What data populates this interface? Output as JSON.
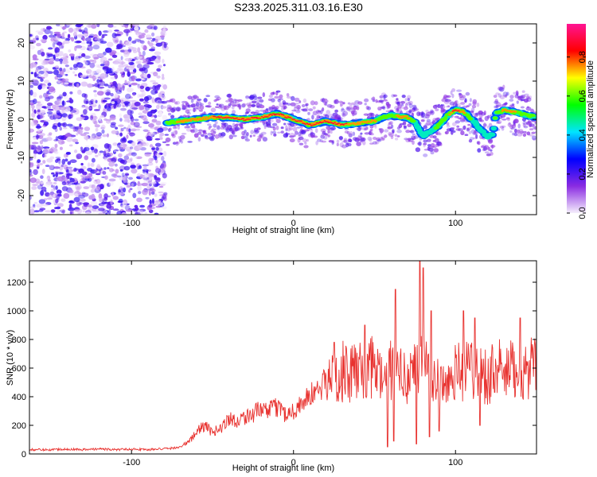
{
  "title": "S233.2025.311.03.16.E30",
  "chart_data": [
    {
      "type": "heatmap",
      "xlabel": "Height of straight line (km)",
      "ylabel": "Frequency (Hz)",
      "xlim": [
        -163,
        150
      ],
      "ylim": [
        -25,
        25
      ],
      "xticks": [
        -100,
        0,
        100
      ],
      "yticks": [
        -20,
        -10,
        0,
        10,
        20
      ],
      "colorbar": {
        "label": "Normalized spectral amplitude",
        "range": [
          0,
          0.97
        ],
        "ticks": [
          0.0,
          0.2,
          0.4,
          0.6,
          0.8
        ],
        "colormap": [
          "#f5eefc",
          "#8a2be2",
          "#0000ff",
          "#00e5ff",
          "#00ff00",
          "#ffff00",
          "#ff0000",
          "#ff1493"
        ]
      },
      "noise_region_x": [
        -163,
        -79
      ],
      "signal_track": {
        "x": [
          -78,
          -70,
          -60,
          -50,
          -40,
          -30,
          -20,
          -10,
          0,
          10,
          20,
          30,
          40,
          50,
          55,
          60,
          70,
          75,
          80,
          85,
          90,
          95,
          100,
          105,
          110,
          115,
          120,
          123,
          125,
          130,
          135,
          140,
          145,
          150
        ],
        "y": [
          -1,
          -0.5,
          0,
          0.5,
          0.5,
          0,
          0.5,
          1.5,
          0,
          -1.5,
          -0.5,
          -1.5,
          -1,
          -0.5,
          0.5,
          1,
          0.5,
          -1,
          -4.5,
          -3,
          -1.5,
          1,
          2.5,
          2,
          0,
          -2.5,
          -4.5,
          -4,
          1.5,
          2.5,
          2,
          1.5,
          1,
          0.5
        ],
        "amplitude": [
          0.6,
          0.7,
          0.75,
          0.8,
          0.85,
          0.85,
          0.8,
          0.9,
          0.9,
          0.85,
          0.8,
          0.85,
          0.7,
          0.7,
          0.6,
          0.6,
          0.8,
          0.5,
          0.4,
          0.5,
          0.55,
          0.6,
          0.9,
          0.7,
          0.5,
          0.5,
          0.5,
          0.4,
          0.6,
          0.7,
          0.75,
          0.6,
          0.55,
          0.5
        ]
      }
    },
    {
      "type": "line",
      "xlabel": "Height of straight line (km)",
      "ylabel": "SNR (10 * v/v)",
      "xlim": [
        -163,
        150
      ],
      "ylim": [
        0,
        1350
      ],
      "xticks": [
        -100,
        0,
        100
      ],
      "yticks": [
        0,
        200,
        400,
        600,
        800,
        1000,
        1200
      ],
      "color": "#e8322f",
      "x": [
        -163,
        -150,
        -140,
        -130,
        -120,
        -110,
        -100,
        -90,
        -80,
        -75,
        -70,
        -65,
        -60,
        -55,
        -50,
        -45,
        -40,
        -35,
        -30,
        -25,
        -20,
        -15,
        -10,
        -5,
        0,
        5,
        10,
        15,
        20,
        25,
        30,
        35,
        40,
        45,
        50,
        55,
        60,
        65,
        70,
        75,
        80,
        85,
        90,
        95,
        100,
        105,
        110,
        115,
        120,
        125,
        130,
        135,
        140,
        145,
        150
      ],
      "y": [
        30,
        30,
        35,
        30,
        35,
        30,
        35,
        30,
        35,
        40,
        50,
        80,
        150,
        200,
        150,
        180,
        250,
        230,
        260,
        280,
        310,
        300,
        330,
        280,
        300,
        360,
        400,
        450,
        500,
        550,
        580,
        540,
        600,
        550,
        620,
        500,
        580,
        540,
        560,
        600,
        650,
        560,
        520,
        500,
        600,
        560,
        620,
        580,
        540,
        600,
        560,
        580,
        560,
        600,
        580
      ],
      "spikes": [
        {
          "x": 25,
          "y": 780
        },
        {
          "x": 44,
          "y": 900
        },
        {
          "x": 58,
          "y": 1250
        },
        {
          "x": 63,
          "y": 1150
        },
        {
          "x": 78,
          "y": 1350
        },
        {
          "x": 80,
          "y": 1300
        },
        {
          "x": 85,
          "y": 1000
        },
        {
          "x": 105,
          "y": 1000
        },
        {
          "x": 112,
          "y": 950
        },
        {
          "x": 140,
          "y": 950
        }
      ],
      "dips": [
        {
          "x": 58,
          "y": 50
        },
        {
          "x": 62,
          "y": 90
        },
        {
          "x": 76,
          "y": 70
        },
        {
          "x": 84,
          "y": 120
        },
        {
          "x": 90,
          "y": 160
        },
        {
          "x": 115,
          "y": 200
        }
      ]
    }
  ]
}
